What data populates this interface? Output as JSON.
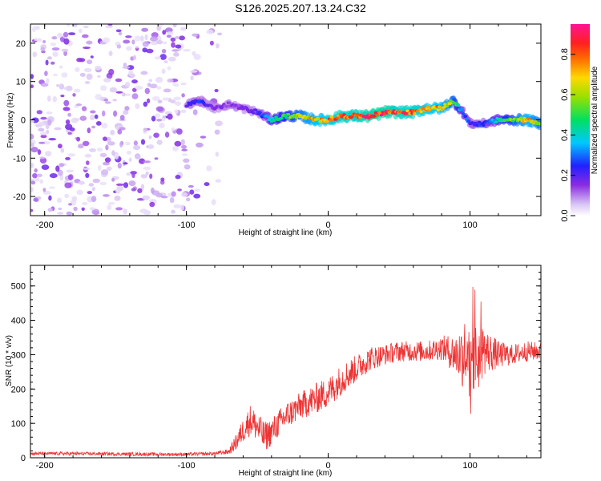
{
  "title": "S126.2025.207.13.24.C32",
  "colors": {
    "snr_line": "#ee3333",
    "spectrogram_low": "#d9c6f5",
    "spectrogram_mid": "#7a2be0"
  },
  "chart_data": [
    {
      "type": "heatmap",
      "xlabel": "Height of straight line (km)",
      "ylabel": "Frequency (Hz)",
      "xlim": [
        -210,
        150
      ],
      "ylim": [
        -25,
        25
      ],
      "x_ticks": [
        "-200",
        "-100",
        "0",
        "100"
      ],
      "y_ticks": [
        "20",
        "10",
        "0",
        "-10",
        "-20"
      ],
      "colorbar": {
        "label": "Normalized spectral amplitude",
        "range": [
          0.0,
          0.95
        ],
        "ticks": [
          "0.0",
          "0.2",
          "0.4",
          "0.6",
          "0.8"
        ],
        "colormap": "rainbow (violet-blue-cyan-green-yellow-red-magenta)"
      },
      "ridge": {
        "description_points_x": [
          -100,
          -90,
          -80,
          -70,
          -60,
          -50,
          -40,
          -30,
          -20,
          -10,
          0,
          10,
          20,
          30,
          40,
          50,
          60,
          70,
          80,
          88,
          95,
          100,
          110,
          120,
          130,
          140,
          150
        ],
        "frequency_hz": [
          4,
          5,
          3,
          4,
          3,
          2,
          0,
          1,
          1,
          0,
          0,
          1,
          1,
          1,
          2,
          2,
          2,
          3,
          3,
          5,
          2,
          -1,
          -1,
          0,
          0,
          0,
          -1
        ],
        "amplitude": [
          0.2,
          0.25,
          0.15,
          0.15,
          0.15,
          0.2,
          0.4,
          0.5,
          0.6,
          0.7,
          0.75,
          0.8,
          0.8,
          0.85,
          0.85,
          0.8,
          0.8,
          0.75,
          0.7,
          0.6,
          0.3,
          0.25,
          0.25,
          0.4,
          0.55,
          0.7,
          0.6
        ]
      }
    },
    {
      "type": "line",
      "xlabel": "Height of straight line (km)",
      "ylabel": "SNR (10 * v/v)",
      "xlim": [
        -210,
        150
      ],
      "ylim": [
        0,
        560
      ],
      "x_ticks": [
        "-200",
        "-100",
        "0",
        "100"
      ],
      "y_ticks": [
        "500",
        "400",
        "300",
        "200",
        "100",
        "0"
      ],
      "series": [
        {
          "x": [
            -210,
            -180,
            -150,
            -120,
            -100,
            -80,
            -70,
            -65,
            -60,
            -55,
            -50,
            -45,
            -40,
            -35,
            -30,
            -20,
            -10,
            0,
            10,
            20,
            30,
            40,
            50,
            60,
            70,
            80,
            90,
            95,
            100,
            105,
            110,
            120,
            130,
            140,
            150
          ],
          "y": [
            12,
            12,
            11,
            10,
            10,
            12,
            18,
            45,
            80,
            110,
            90,
            60,
            75,
            100,
            120,
            150,
            170,
            190,
            230,
            260,
            290,
            300,
            310,
            310,
            310,
            320,
            300,
            300,
            300,
            290,
            310,
            300,
            300,
            310,
            310
          ],
          "spread": [
            5,
            5,
            5,
            5,
            5,
            5,
            8,
            25,
            35,
            45,
            45,
            45,
            40,
            40,
            40,
            40,
            45,
            45,
            45,
            40,
            35,
            30,
            30,
            30,
            30,
            35,
            60,
            100,
            140,
            110,
            70,
            40,
            30,
            30,
            25
          ]
        }
      ]
    }
  ]
}
